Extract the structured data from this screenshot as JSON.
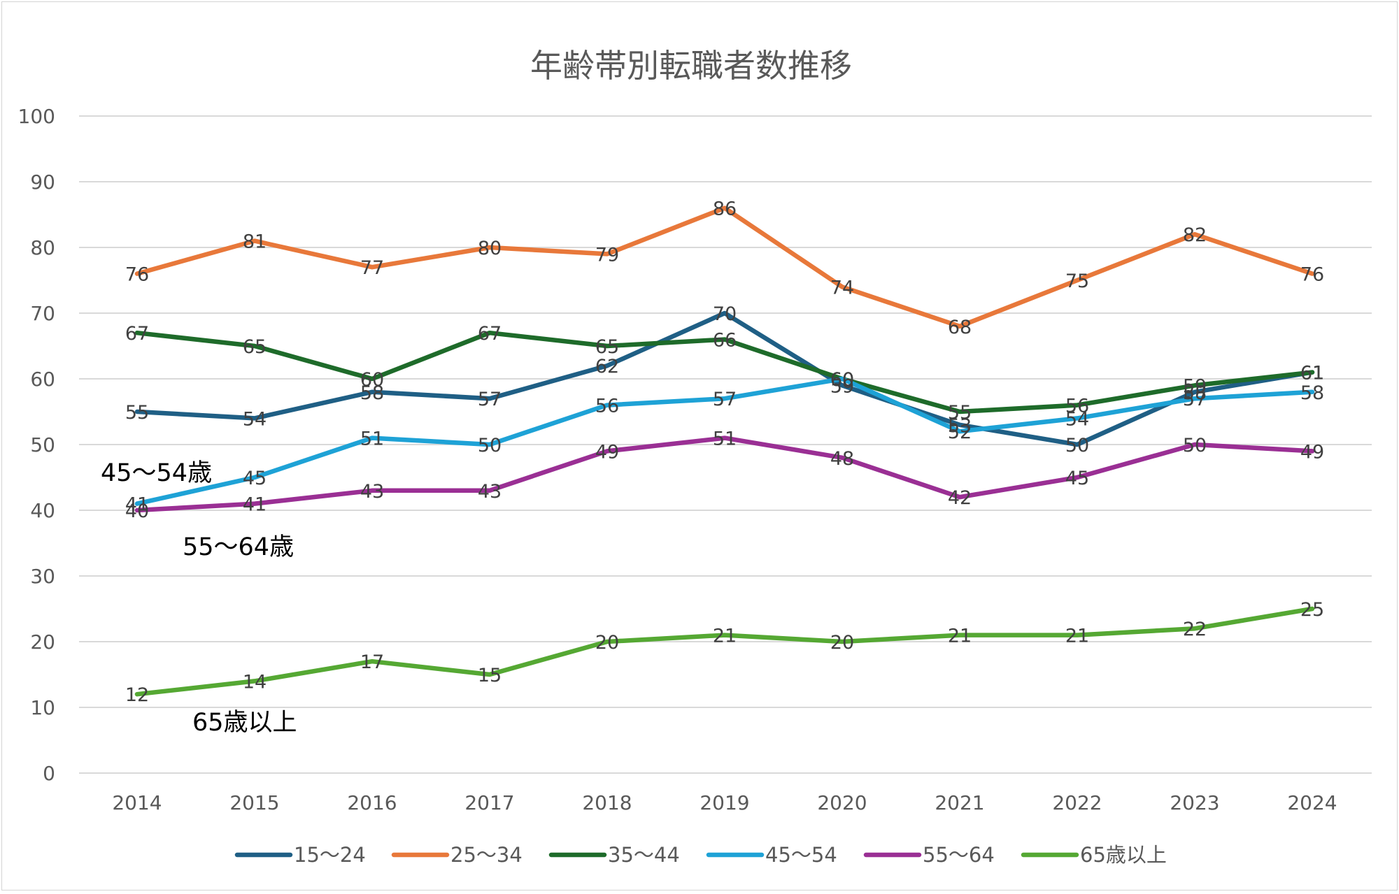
{
  "chart_data": {
    "type": "line",
    "title": "年齢帯別転職者数推移",
    "categories": [
      "2014",
      "2015",
      "2016",
      "2017",
      "2018",
      "2019",
      "2020",
      "2021",
      "2022",
      "2023",
      "2024"
    ],
    "ylim": [
      0,
      100
    ],
    "yticks": [
      "0",
      "10",
      "20",
      "30",
      "40",
      "50",
      "60",
      "70",
      "80",
      "90",
      "100"
    ],
    "grid": true,
    "legend": "bottom",
    "series": [
      {
        "name": "15～24",
        "color": "#1f5f85",
        "values": [
          55,
          54,
          58,
          57,
          62,
          70,
          59,
          53,
          50,
          58,
          61
        ]
      },
      {
        "name": "25～34",
        "color": "#e8783a",
        "values": [
          76,
          81,
          77,
          80,
          79,
          86,
          74,
          68,
          75,
          82,
          76
        ]
      },
      {
        "name": "35～44",
        "color": "#1e6b2a",
        "values": [
          67,
          65,
          60,
          67,
          65,
          66,
          60,
          55,
          56,
          59,
          61
        ]
      },
      {
        "name": "45～54",
        "color": "#1ea2d6",
        "values": [
          41,
          45,
          51,
          50,
          56,
          57,
          60,
          52,
          54,
          57,
          58
        ]
      },
      {
        "name": "55～64",
        "color": "#9a2f94",
        "values": [
          40,
          41,
          43,
          43,
          49,
          51,
          48,
          42,
          45,
          50,
          49
        ]
      },
      {
        "name": "65歳以上",
        "color": "#55a833",
        "values": [
          12,
          14,
          17,
          15,
          20,
          21,
          20,
          21,
          21,
          22,
          25
        ]
      }
    ],
    "annotations": [
      "45～54歳",
      "55～64歳",
      "65歳以上"
    ]
  }
}
